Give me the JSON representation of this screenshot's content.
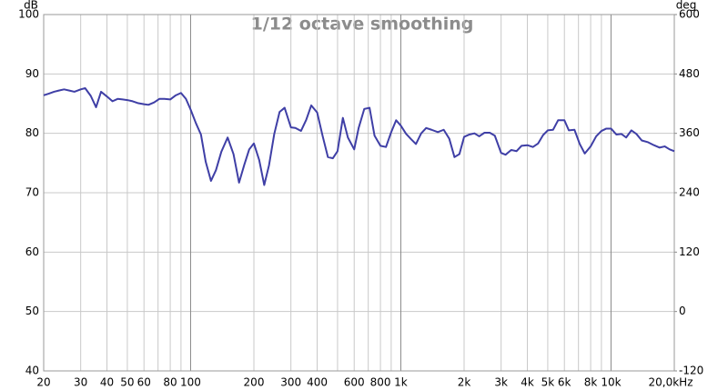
{
  "chart_data": {
    "type": "line",
    "title": "1/12 octave smoothing",
    "y_label": "dB",
    "y2_label": "deg",
    "x": [
      20,
      21.2,
      22.4,
      23.6,
      25,
      26.5,
      28,
      30,
      31.5,
      33.5,
      35.5,
      37.5,
      40,
      42.5,
      45,
      47.5,
      50,
      53,
      56,
      60,
      63,
      67,
      71,
      75,
      80,
      85,
      90,
      95,
      100,
      106,
      112,
      118,
      125,
      132,
      140,
      150,
      160,
      170,
      180,
      190,
      200,
      212,
      224,
      236,
      250,
      265,
      280,
      300,
      315,
      335,
      355,
      375,
      400,
      425,
      450,
      475,
      500,
      530,
      560,
      600,
      630,
      670,
      710,
      750,
      800,
      850,
      900,
      950,
      1000,
      1060,
      1120,
      1180,
      1250,
      1320,
      1400,
      1500,
      1600,
      1700,
      1800,
      1900,
      2000,
      2120,
      2240,
      2360,
      2500,
      2650,
      2800,
      3000,
      3150,
      3350,
      3550,
      3750,
      4000,
      4250,
      4500,
      4750,
      5000,
      5300,
      5600,
      6000,
      6300,
      6700,
      7100,
      7500,
      8000,
      8500,
      9000,
      9500,
      10000,
      10600,
      11200,
      11800,
      12500,
      13200,
      14000,
      15000,
      16000,
      17000,
      18000,
      19000,
      20000
    ],
    "values": [
      86.4,
      86.7,
      87.0,
      87.2,
      87.4,
      87.2,
      87.0,
      87.4,
      87.6,
      86.3,
      84.4,
      87.0,
      86.2,
      85.4,
      85.8,
      85.7,
      85.6,
      85.4,
      85.1,
      84.9,
      84.8,
      85.2,
      85.8,
      85.8,
      85.7,
      86.4,
      86.8,
      85.8,
      84.0,
      81.7,
      79.8,
      75.2,
      72.0,
      73.8,
      76.9,
      79.3,
      76.5,
      71.7,
      74.7,
      77.3,
      78.3,
      75.5,
      71.3,
      74.6,
      79.9,
      83.6,
      84.3,
      81.0,
      80.9,
      80.4,
      82.3,
      84.7,
      83.5,
      79.5,
      76.0,
      75.8,
      77.0,
      82.6,
      79.3,
      77.3,
      80.9,
      84.1,
      84.3,
      79.6,
      77.9,
      77.7,
      80.2,
      82.2,
      81.3,
      79.9,
      79.0,
      78.2,
      80.0,
      80.9,
      80.6,
      80.2,
      80.6,
      79.1,
      76.0,
      76.5,
      79.4,
      79.8,
      80.0,
      79.5,
      80.1,
      80.1,
      79.6,
      76.7,
      76.4,
      77.2,
      77.0,
      77.9,
      78.0,
      77.7,
      78.3,
      79.7,
      80.5,
      80.6,
      82.2,
      82.2,
      80.5,
      80.6,
      78.2,
      76.6,
      77.8,
      79.5,
      80.4,
      80.8,
      80.8,
      79.8,
      79.9,
      79.3,
      80.5,
      79.9,
      78.8,
      78.5,
      78.0,
      77.6,
      77.8,
      77.3,
      77.0
    ],
    "color": "#3f3fa6",
    "log_x": true,
    "xlim": [
      20,
      20000
    ],
    "xticks": [
      20,
      30,
      40,
      50,
      60,
      80,
      100,
      200,
      300,
      400,
      600,
      800,
      {
        "value": 1000,
        "label": "1k"
      },
      {
        "value": 2000,
        "label": "2k"
      },
      {
        "value": 3000,
        "label": "3k"
      },
      {
        "value": 4000,
        "label": "4k"
      },
      {
        "value": 5000,
        "label": "5k"
      },
      {
        "value": 6000,
        "label": "6k"
      },
      {
        "value": 8000,
        "label": "8k"
      },
      {
        "value": 10000,
        "label": "10k"
      },
      {
        "value": 20000,
        "label": "20,0kHz"
      }
    ],
    "xgrid": [
      70,
      90,
      500,
      700,
      900,
      7000,
      9000
    ],
    "ylim": [
      40,
      100
    ],
    "yticks": [
      40,
      50,
      60,
      70,
      80,
      90,
      100
    ],
    "y2lim": [
      -120,
      600
    ],
    "y2ticks": [
      -120,
      0,
      120,
      240,
      360,
      480,
      600
    ],
    "grid": true
  }
}
